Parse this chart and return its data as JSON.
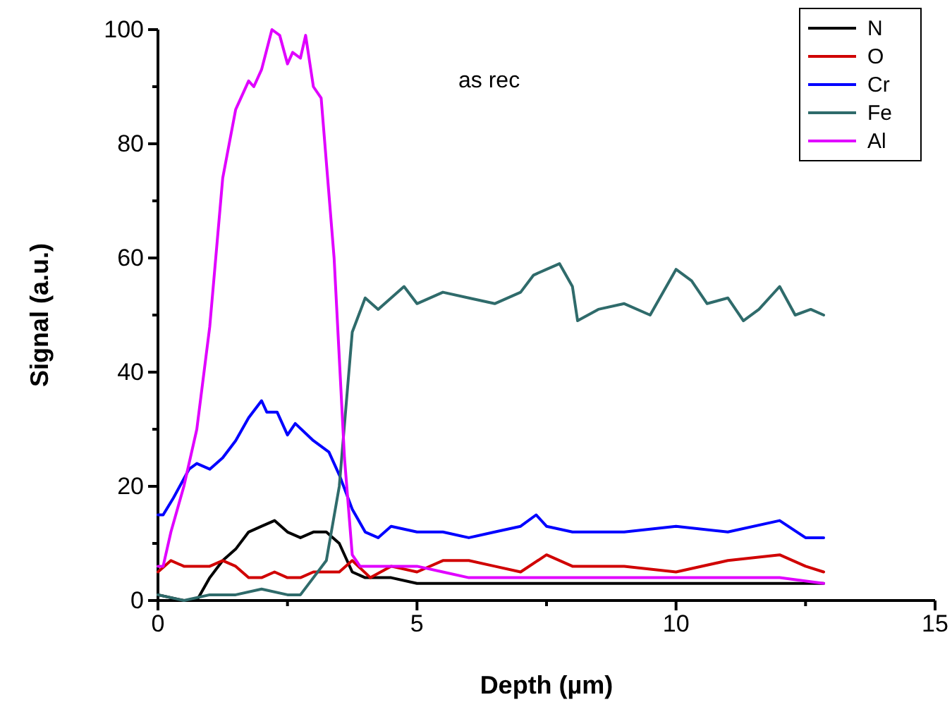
{
  "chart_data": {
    "type": "line",
    "xlabel": "Depth (µm)",
    "ylabel": "Signal (a.u.)",
    "xlim": [
      0,
      15
    ],
    "ylim": [
      0,
      100
    ],
    "xticks": [
      0,
      5,
      10,
      15
    ],
    "yticks": [
      0,
      20,
      40,
      60,
      80,
      100
    ],
    "legend": "top right",
    "grid": false,
    "marker": "none",
    "line_style": "solid",
    "annotations": [
      "as rec"
    ],
    "series": [
      {
        "name": "N",
        "color": "#000000",
        "x": [
          0,
          0.5,
          0.75,
          1.0,
          1.25,
          1.5,
          1.75,
          2.0,
          2.25,
          2.5,
          2.75,
          3.0,
          3.25,
          3.5,
          3.75,
          4.0,
          4.5,
          5.0,
          5.5,
          6.0,
          7.0,
          8.0,
          9.0,
          10.0,
          11.0,
          12.0,
          12.85
        ],
        "values": [
          1,
          0,
          0,
          4,
          7,
          9,
          12,
          13,
          14,
          12,
          11,
          12,
          12,
          10,
          5,
          4,
          4,
          3,
          3,
          3,
          3,
          3,
          3,
          null,
          3,
          3,
          3
        ]
      },
      {
        "name": "O",
        "color": "#d00000",
        "x": [
          0,
          0.25,
          0.5,
          1.0,
          1.25,
          1.5,
          1.75,
          2.0,
          2.25,
          2.5,
          2.75,
          3.0,
          3.5,
          3.75,
          4.1,
          4.5,
          5.0,
          5.5,
          6.0,
          6.5,
          7.0,
          7.5,
          8.0,
          9.0,
          10.0,
          11.0,
          12.0,
          12.5,
          12.85
        ],
        "values": [
          5,
          7,
          6,
          6,
          7,
          6,
          4,
          4,
          5,
          4,
          4,
          5,
          5,
          7,
          4,
          6,
          5,
          7,
          7,
          6,
          5,
          8,
          6,
          6,
          5,
          7,
          8,
          6,
          5
        ]
      },
      {
        "name": "Cr",
        "color": "#0000ff",
        "x": [
          0,
          0.1,
          0.3,
          0.6,
          0.75,
          1.0,
          1.25,
          1.5,
          1.75,
          2.0,
          2.1,
          2.3,
          2.5,
          2.65,
          3.0,
          3.3,
          3.5,
          3.75,
          4.0,
          4.25,
          4.5,
          5.0,
          5.5,
          6.0,
          6.5,
          7.0,
          7.3,
          7.5,
          8.0,
          9.0,
          10.0,
          11.0,
          12.0,
          12.5,
          12.85
        ],
        "values": [
          15,
          15,
          18,
          23,
          24,
          23,
          25,
          28,
          32,
          35,
          33,
          33,
          29,
          31,
          28,
          26,
          22,
          16,
          12,
          11,
          13,
          12,
          12,
          11,
          12,
          13,
          15,
          13,
          12,
          12,
          13,
          12,
          14,
          11,
          11
        ]
      },
      {
        "name": "Fe",
        "color": "#2f6b6b",
        "x": [
          0,
          0.5,
          1.0,
          1.5,
          2.0,
          2.5,
          2.75,
          3.0,
          3.25,
          3.5,
          3.75,
          4.0,
          4.25,
          4.5,
          4.75,
          5.0,
          5.5,
          6.0,
          6.5,
          7.0,
          7.25,
          7.5,
          7.75,
          8.0,
          8.1,
          8.5,
          9.0,
          9.5,
          10.0,
          10.3,
          10.6,
          11.0,
          11.3,
          11.6,
          12.0,
          12.3,
          12.6,
          12.85
        ],
        "values": [
          1,
          0,
          1,
          1,
          2,
          1,
          1,
          4,
          7,
          20,
          47,
          53,
          51,
          53,
          55,
          52,
          54,
          53,
          52,
          54,
          57,
          58,
          59,
          55,
          49,
          51,
          52,
          50,
          58,
          56,
          52,
          53,
          49,
          51,
          55,
          50,
          51,
          50
        ]
      },
      {
        "name": "Al",
        "color": "#e000ff",
        "x": [
          0,
          0.1,
          0.25,
          0.5,
          0.75,
          1.0,
          1.25,
          1.5,
          1.75,
          1.85,
          2.0,
          2.2,
          2.35,
          2.5,
          2.6,
          2.75,
          2.85,
          3.0,
          3.15,
          3.4,
          3.6,
          3.75,
          3.9,
          5.0,
          5.5,
          6.0,
          7.0,
          8.0,
          9.0,
          10.0,
          11.0,
          12.0,
          12.85
        ],
        "values": [
          6,
          6,
          12,
          20,
          30,
          48,
          74,
          86,
          91,
          90,
          93,
          100,
          99,
          94,
          96,
          95,
          99,
          90,
          88,
          60,
          25,
          8,
          6,
          6,
          5,
          4,
          4,
          4,
          4,
          4,
          4,
          4,
          3
        ]
      }
    ]
  }
}
